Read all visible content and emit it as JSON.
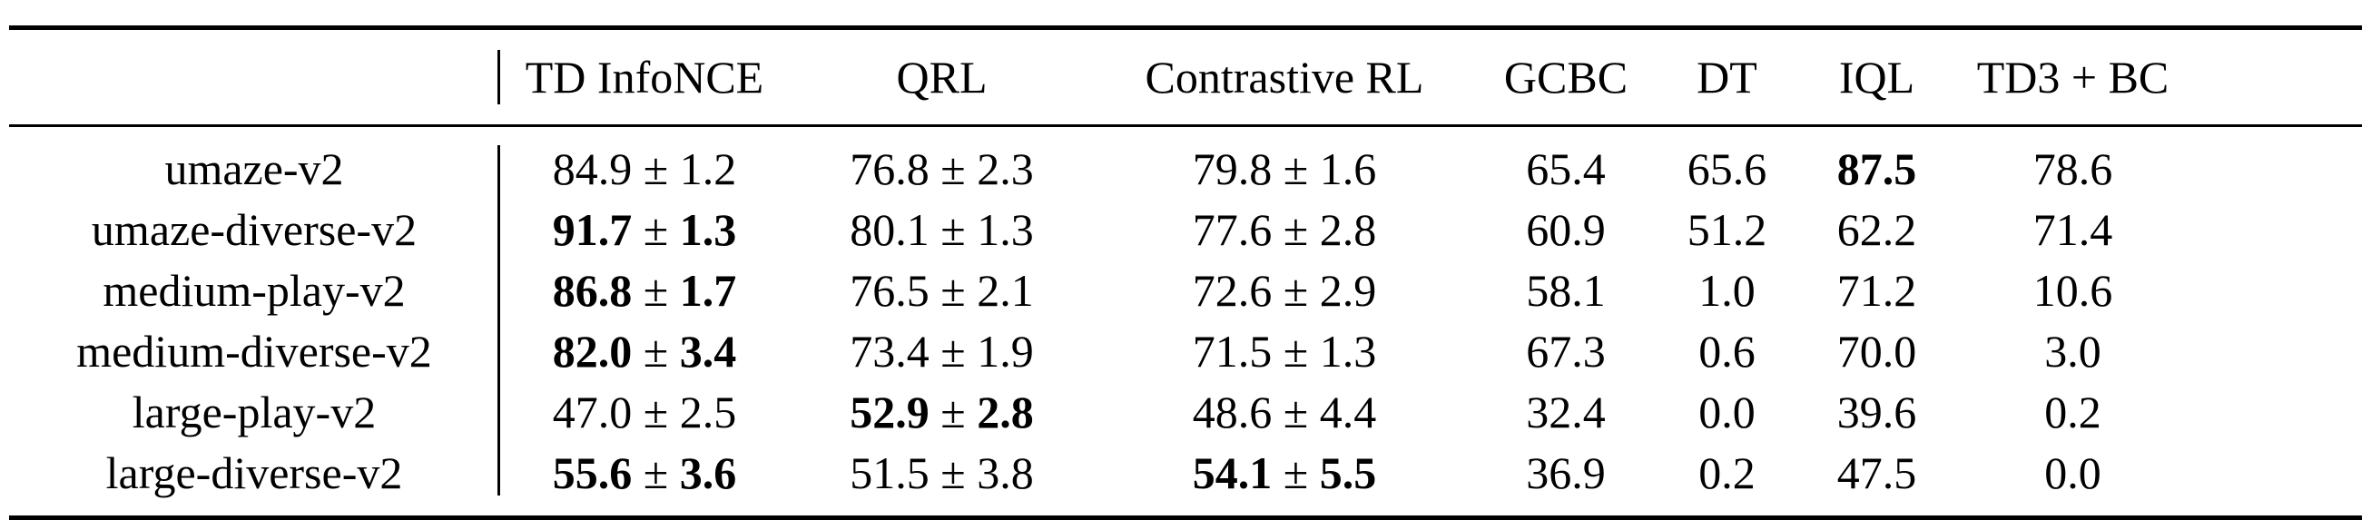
{
  "table": {
    "columns": [
      "",
      "TD InfoNCE",
      "QRL",
      "Contrastive RL",
      "GCBC",
      "DT",
      "IQL",
      "TD3 + BC"
    ],
    "rows": [
      {
        "label": "umaze-v2",
        "cells": [
          {
            "mean": "84.9",
            "std": "1.2",
            "bold": false
          },
          {
            "mean": "76.8",
            "std": "2.3",
            "bold": false
          },
          {
            "mean": "79.8",
            "std": "1.6",
            "bold": false
          },
          {
            "mean": "65.4",
            "std": null,
            "bold": false
          },
          {
            "mean": "65.6",
            "std": null,
            "bold": false
          },
          {
            "mean": "87.5",
            "std": null,
            "bold": true
          },
          {
            "mean": "78.6",
            "std": null,
            "bold": false
          }
        ]
      },
      {
        "label": "umaze-diverse-v2",
        "cells": [
          {
            "mean": "91.7",
            "std": "1.3",
            "bold": true
          },
          {
            "mean": "80.1",
            "std": "1.3",
            "bold": false
          },
          {
            "mean": "77.6",
            "std": "2.8",
            "bold": false
          },
          {
            "mean": "60.9",
            "std": null,
            "bold": false
          },
          {
            "mean": "51.2",
            "std": null,
            "bold": false
          },
          {
            "mean": "62.2",
            "std": null,
            "bold": false
          },
          {
            "mean": "71.4",
            "std": null,
            "bold": false
          }
        ]
      },
      {
        "label": "medium-play-v2",
        "cells": [
          {
            "mean": "86.8",
            "std": "1.7",
            "bold": true
          },
          {
            "mean": "76.5",
            "std": "2.1",
            "bold": false
          },
          {
            "mean": "72.6",
            "std": "2.9",
            "bold": false
          },
          {
            "mean": "58.1",
            "std": null,
            "bold": false
          },
          {
            "mean": "1.0",
            "std": null,
            "bold": false
          },
          {
            "mean": "71.2",
            "std": null,
            "bold": false
          },
          {
            "mean": "10.6",
            "std": null,
            "bold": false
          }
        ]
      },
      {
        "label": "medium-diverse-v2",
        "cells": [
          {
            "mean": "82.0",
            "std": "3.4",
            "bold": true
          },
          {
            "mean": "73.4",
            "std": "1.9",
            "bold": false
          },
          {
            "mean": "71.5",
            "std": "1.3",
            "bold": false
          },
          {
            "mean": "67.3",
            "std": null,
            "bold": false
          },
          {
            "mean": "0.6",
            "std": null,
            "bold": false
          },
          {
            "mean": "70.0",
            "std": null,
            "bold": false
          },
          {
            "mean": "3.0",
            "std": null,
            "bold": false
          }
        ]
      },
      {
        "label": "large-play-v2",
        "cells": [
          {
            "mean": "47.0",
            "std": "2.5",
            "bold": false
          },
          {
            "mean": "52.9",
            "std": "2.8",
            "bold": true
          },
          {
            "mean": "48.6",
            "std": "4.4",
            "bold": false
          },
          {
            "mean": "32.4",
            "std": null,
            "bold": false
          },
          {
            "mean": "0.0",
            "std": null,
            "bold": false
          },
          {
            "mean": "39.6",
            "std": null,
            "bold": false
          },
          {
            "mean": "0.2",
            "std": null,
            "bold": false
          }
        ]
      },
      {
        "label": "large-diverse-v2",
        "cells": [
          {
            "mean": "55.6",
            "std": "3.6",
            "bold": true
          },
          {
            "mean": "51.5",
            "std": "3.8",
            "bold": false
          },
          {
            "mean": "54.1",
            "std": "5.5",
            "bold": true
          },
          {
            "mean": "36.9",
            "std": null,
            "bold": false
          },
          {
            "mean": "0.2",
            "std": null,
            "bold": false
          },
          {
            "mean": "47.5",
            "std": null,
            "bold": false
          },
          {
            "mean": "0.0",
            "std": null,
            "bold": false
          }
        ]
      }
    ]
  }
}
